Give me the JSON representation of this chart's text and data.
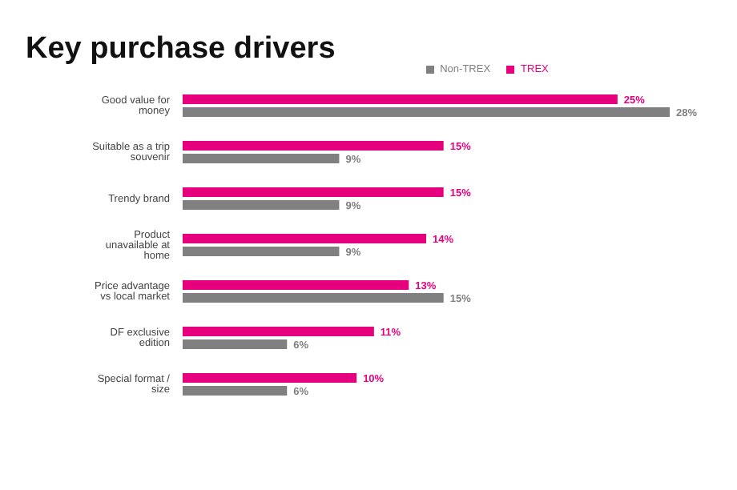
{
  "chart_data": {
    "type": "bar",
    "orientation": "horizontal",
    "title": "Key purchase drivers",
    "categories": [
      "Good value for money",
      "Suitable as a trip souvenir",
      "Trendy brand",
      "Product unavailable at home",
      "Price advantage vs local market",
      "DF exclusive edition",
      "Special format / size"
    ],
    "series": [
      {
        "name": "TREX",
        "color": "#e6007e",
        "values": [
          25,
          15,
          15,
          14,
          13,
          11,
          10
        ],
        "value_labels": [
          "25%",
          "15%",
          "15%",
          "14%",
          "13%",
          "11%",
          "10%"
        ]
      },
      {
        "name": "Non-TREX",
        "color": "#808080",
        "values": [
          28,
          9,
          9,
          9,
          15,
          6,
          6
        ],
        "value_labels": [
          "28%",
          "9%",
          "9%",
          "9%",
          "15%",
          "6%",
          "6%"
        ]
      }
    ],
    "legend": "top"
  }
}
